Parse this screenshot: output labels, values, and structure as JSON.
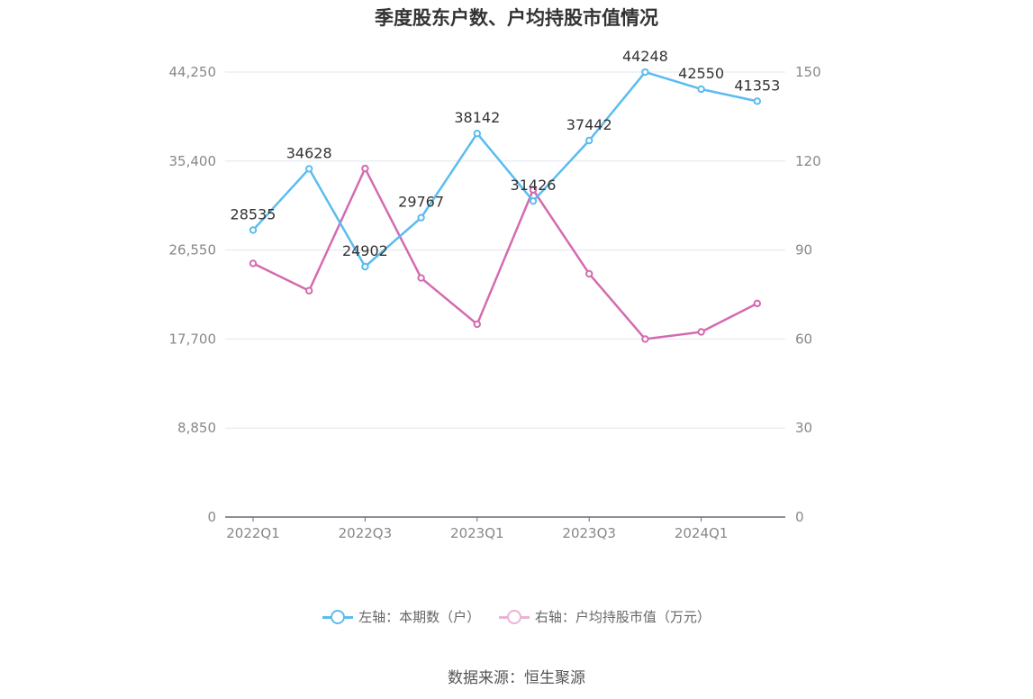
{
  "title": "季度股东户数、户均持股市值情况",
  "source": "数据来源：恒生聚源",
  "chart_data": {
    "type": "line",
    "title": "季度股东户数、户均持股市值情况",
    "categories": [
      "2022Q1",
      "2022Q2",
      "2022Q3",
      "2022Q4",
      "2023Q1",
      "2023Q2",
      "2023Q3",
      "2023Q4",
      "2024Q1",
      "2024Q2"
    ],
    "x_tick_labels": [
      "2022Q1",
      "2022Q3",
      "2023Q1",
      "2023Q3",
      "2024Q1"
    ],
    "y_left": {
      "ylim": [
        0,
        44250
      ],
      "ticks": [
        0,
        8850,
        17700,
        26550,
        35400,
        44250
      ],
      "tick_labels": [
        "0",
        "8,850",
        "17,700",
        "26,550",
        "35,400",
        "44,250"
      ]
    },
    "y_right": {
      "ylim": [
        0,
        150
      ],
      "ticks": [
        0,
        30,
        60,
        90,
        120,
        150
      ],
      "tick_labels": [
        "0",
        "30",
        "60",
        "90",
        "120",
        "150"
      ]
    },
    "series": [
      {
        "name": "左轴：本期数（户）",
        "axis": "left",
        "color": "#5bbcef",
        "values": [
          28535,
          34628,
          24902,
          29767,
          38142,
          31426,
          37442,
          44248,
          42550,
          41353
        ],
        "labels": [
          "28535",
          "34628",
          "24902",
          "29767",
          "38142",
          "31426",
          "37442",
          "44248",
          "42550",
          "41353"
        ]
      },
      {
        "name": "右轴：户均持股市值（万元）",
        "axis": "right",
        "color": "#d46bb0",
        "values": [
          85.5,
          76.3,
          117.5,
          80.6,
          65.0,
          110.3,
          82.0,
          60.0,
          62.4,
          72.0
        ]
      }
    ],
    "grid": true,
    "legend_position": "bottom"
  }
}
